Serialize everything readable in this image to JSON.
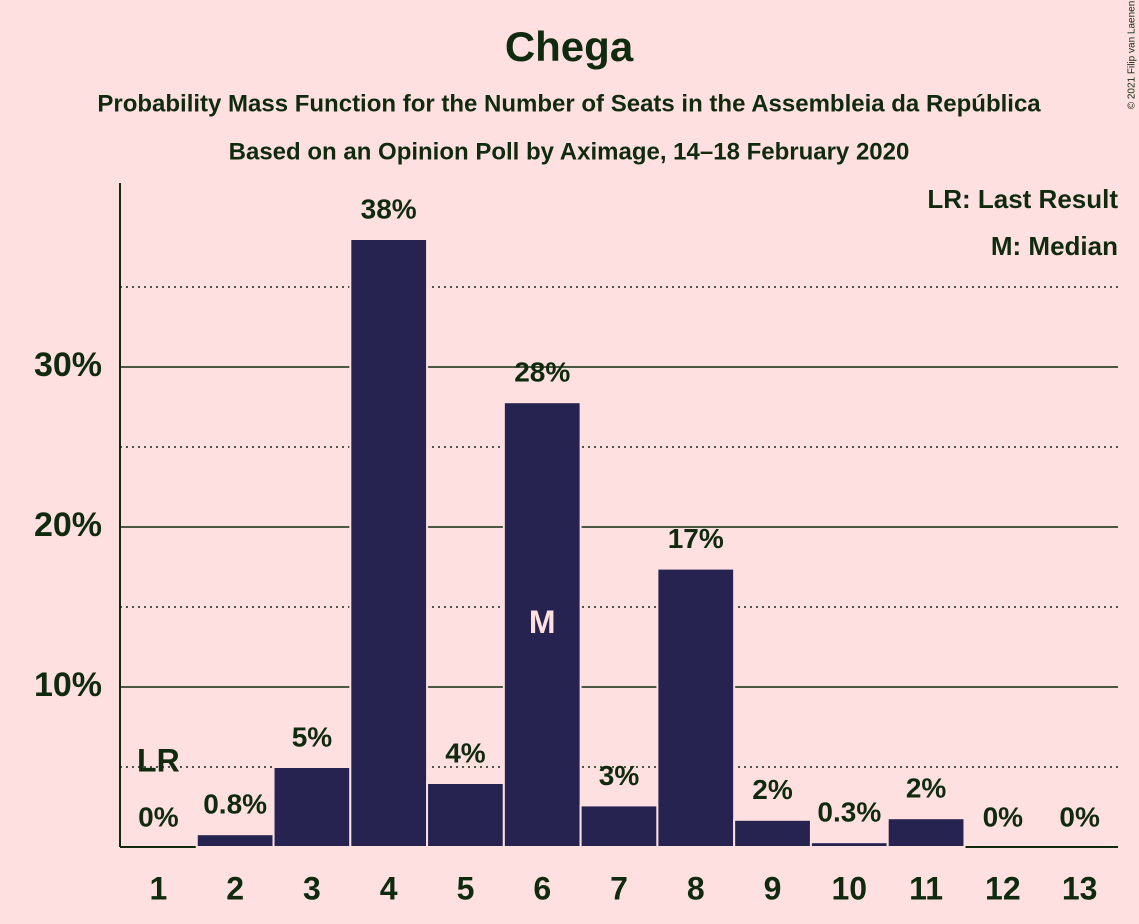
{
  "chart_data": {
    "type": "bar",
    "title": "Chega",
    "subtitle": "Probability Mass Function for the Number of Seats in the Assembleia da República",
    "subtitle2": "Based on an Opinion Poll by Aximage, 14–18 February 2020",
    "copyright": "© 2021 Filip van Laenen",
    "categories": [
      "1",
      "2",
      "3",
      "4",
      "5",
      "6",
      "7",
      "8",
      "9",
      "10",
      "11",
      "12",
      "13"
    ],
    "values": [
      0,
      0.8,
      5,
      38,
      4,
      27.8,
      2.6,
      17.4,
      1.7,
      0.3,
      1.8,
      0,
      0
    ],
    "value_labels": [
      "0%",
      "0.8%",
      "5%",
      "38%",
      "4%",
      "28%",
      "3%",
      "17%",
      "2%",
      "0.3%",
      "2%",
      "0%",
      "0%"
    ],
    "color": "#262350",
    "ylim": [
      0,
      41.5
    ],
    "yticks": [
      {
        "value": 10,
        "label": "10%"
      },
      {
        "value": 20,
        "label": "20%"
      },
      {
        "value": 30,
        "label": "30%"
      }
    ],
    "minor_yticks": [
      5,
      15,
      25,
      35
    ],
    "grid": true,
    "annotations": [
      {
        "label": "LR",
        "category": "1"
      },
      {
        "label": "M",
        "category": "6"
      }
    ],
    "legend": [
      "LR: Last Result",
      "M: Median"
    ],
    "legend_position": "top-right"
  }
}
